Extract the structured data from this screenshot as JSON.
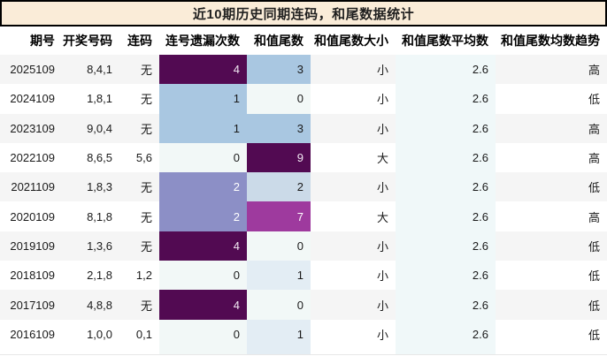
{
  "title": "近10期历史同期连码，和尾数据统计",
  "palette": {
    "titlebg": "#faecd8",
    "titleborder": "#000000",
    "titletext": "#1f1f1f",
    "headertext": "#000000",
    "celltext": "#1a1a1a",
    "stripe": "#f5f5f5",
    "avgcol": "#f0f8f9",
    "heat0": "#f2f8f7",
    "heat1": "#e3edf4",
    "heat2": "#cbdae8",
    "heat3": "#a9c7e1",
    "heatmid": "#8c8fc6",
    "heathigh": "#9e3a9e",
    "heatmax": "#520a52"
  },
  "table": {
    "columns": [
      "期号",
      "开奖号码",
      "连码",
      "连号遗漏次数",
      "和值尾数",
      "和值尾数大小",
      "和值尾数平均数",
      "和值尾数均数趋势"
    ],
    "rows": [
      {
        "period": "2025109",
        "numbers": "8,4,1",
        "lianma": "无",
        "omission": {
          "value": "4",
          "bg": "#520a52",
          "fg": "#f2e8f3"
        },
        "tail": {
          "value": "3",
          "bg": "#a9c7e1",
          "fg": "#1a1a1a"
        },
        "size": "小",
        "avg": "2.6",
        "trend": "高"
      },
      {
        "period": "2024109",
        "numbers": "1,8,1",
        "lianma": "无",
        "omission": {
          "value": "1",
          "bg": "#a9c7e1",
          "fg": "#1a1a1a"
        },
        "tail": {
          "value": "0",
          "bg": "#f2f8f7",
          "fg": "#1a1a1a"
        },
        "size": "小",
        "avg": "2.6",
        "trend": "低"
      },
      {
        "period": "2023109",
        "numbers": "9,0,4",
        "lianma": "无",
        "omission": {
          "value": "1",
          "bg": "#a9c7e1",
          "fg": "#1a1a1a"
        },
        "tail": {
          "value": "3",
          "bg": "#a9c7e1",
          "fg": "#1a1a1a"
        },
        "size": "小",
        "avg": "2.6",
        "trend": "高"
      },
      {
        "period": "2022109",
        "numbers": "8,6,5",
        "lianma": "5,6",
        "omission": {
          "value": "0",
          "bg": "#f2f8f7",
          "fg": "#1a1a1a"
        },
        "tail": {
          "value": "9",
          "bg": "#520a52",
          "fg": "#f2e8f3"
        },
        "size": "大",
        "avg": "2.6",
        "trend": "高"
      },
      {
        "period": "2021109",
        "numbers": "1,8,3",
        "lianma": "无",
        "omission": {
          "value": "2",
          "bg": "#8c8fc6",
          "fg": "#ffffff"
        },
        "tail": {
          "value": "2",
          "bg": "#cbdae8",
          "fg": "#1a1a1a"
        },
        "size": "小",
        "avg": "2.6",
        "trend": "低"
      },
      {
        "period": "2020109",
        "numbers": "8,1,8",
        "lianma": "无",
        "omission": {
          "value": "2",
          "bg": "#8c8fc6",
          "fg": "#ffffff"
        },
        "tail": {
          "value": "7",
          "bg": "#9e3a9e",
          "fg": "#ffffff"
        },
        "size": "大",
        "avg": "2.6",
        "trend": "高"
      },
      {
        "period": "2019109",
        "numbers": "1,3,6",
        "lianma": "无",
        "omission": {
          "value": "4",
          "bg": "#520a52",
          "fg": "#f2e8f3"
        },
        "tail": {
          "value": "0",
          "bg": "#f2f8f7",
          "fg": "#1a1a1a"
        },
        "size": "小",
        "avg": "2.6",
        "trend": "低"
      },
      {
        "period": "2018109",
        "numbers": "2,1,8",
        "lianma": "1,2",
        "omission": {
          "value": "0",
          "bg": "#f2f8f7",
          "fg": "#1a1a1a"
        },
        "tail": {
          "value": "1",
          "bg": "#e3edf4",
          "fg": "#1a1a1a"
        },
        "size": "小",
        "avg": "2.6",
        "trend": "低"
      },
      {
        "period": "2017109",
        "numbers": "4,8,8",
        "lianma": "无",
        "omission": {
          "value": "4",
          "bg": "#520a52",
          "fg": "#f2e8f3"
        },
        "tail": {
          "value": "0",
          "bg": "#f2f8f7",
          "fg": "#1a1a1a"
        },
        "size": "小",
        "avg": "2.6",
        "trend": "低"
      },
      {
        "period": "2016109",
        "numbers": "1,0,0",
        "lianma": "0,1",
        "omission": {
          "value": "0",
          "bg": "#f2f8f7",
          "fg": "#1a1a1a"
        },
        "tail": {
          "value": "1",
          "bg": "#e3edf4",
          "fg": "#1a1a1a"
        },
        "size": "小",
        "avg": "2.6",
        "trend": "低"
      }
    ]
  },
  "chart_data": {
    "type": "table",
    "title": "近10期历史同期连码，和尾数据统计",
    "columns": [
      "期号",
      "开奖号码",
      "连码",
      "连号遗漏次数",
      "和值尾数",
      "和值尾数大小",
      "和值尾数平均数",
      "和值尾数均数趋势"
    ],
    "rows": [
      [
        "2025109",
        "8,4,1",
        "无",
        "4",
        "3",
        "小",
        "2.6",
        "高"
      ],
      [
        "2024109",
        "1,8,1",
        "无",
        "1",
        "0",
        "小",
        "2.6",
        "低"
      ],
      [
        "2023109",
        "9,0,4",
        "无",
        "1",
        "3",
        "小",
        "2.6",
        "高"
      ],
      [
        "2022109",
        "8,6,5",
        "5,6",
        "0",
        "9",
        "大",
        "2.6",
        "高"
      ],
      [
        "2021109",
        "1,8,3",
        "无",
        "2",
        "2",
        "小",
        "2.6",
        "低"
      ],
      [
        "2020109",
        "8,1,8",
        "无",
        "2",
        "7",
        "大",
        "2.6",
        "高"
      ],
      [
        "2019109",
        "1,3,6",
        "无",
        "4",
        "0",
        "小",
        "2.6",
        "低"
      ],
      [
        "2018109",
        "2,1,8",
        "1,2",
        "0",
        "1",
        "小",
        "2.6",
        "低"
      ],
      [
        "2017109",
        "4,8,8",
        "无",
        "4",
        "0",
        "小",
        "2.6",
        "低"
      ],
      [
        "2016109",
        "1,0,0",
        "0,1",
        "0",
        "1",
        "小",
        "2.6",
        "低"
      ]
    ],
    "heatmap_columns": [
      "连号遗漏次数",
      "和值尾数"
    ],
    "heatmap_scale": "low=near-white (#f2f8f7) → light blue (#a9c7e1) → periwinkle (#8c8fc6) → magenta (#9e3a9e) → dark plum (#520a52)",
    "legend_position": "none",
    "grid": false
  }
}
